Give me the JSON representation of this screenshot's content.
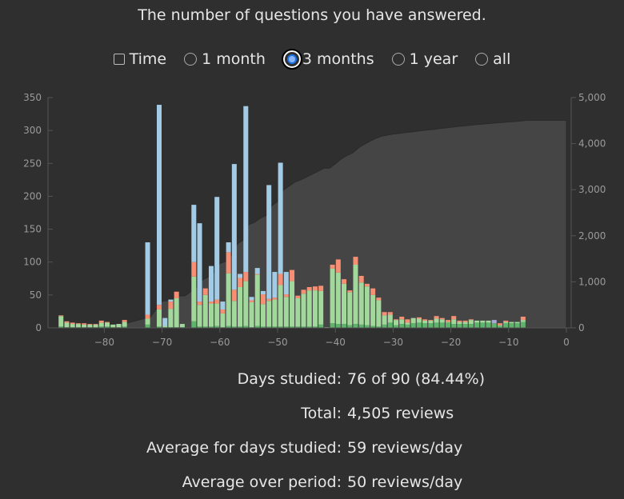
{
  "title": "The number of questions you have answered.",
  "controls": {
    "time_label": "Time",
    "time_checked": false,
    "ranges": [
      "1 month",
      "3 months",
      "1 year",
      "all"
    ],
    "selected_range": "3 months"
  },
  "stats": [
    {
      "label": "Days studied:",
      "value": "76 of 90 (84.44%)"
    },
    {
      "label": "Total:",
      "value": "4,505 reviews"
    },
    {
      "label": "Average for days studied:",
      "value": "59 reviews/day"
    },
    {
      "label": "Average over period:",
      "value": "50 reviews/day"
    }
  ],
  "colors": {
    "learn": "#a3cbe5",
    "relearn": "#f68f73",
    "young": "#a2d89c",
    "mature": "#5cb56a",
    "filtered": "#a9a9d6",
    "cumulative": "#454545",
    "background": "#2f2f2f"
  },
  "chart_data": {
    "type": "bar",
    "stacked": true,
    "xlim": [
      -88,
      0
    ],
    "ylim_left": [
      0,
      350
    ],
    "ylim_right": [
      0,
      5000
    ],
    "x_ticks": [
      -80,
      -70,
      -60,
      -50,
      -40,
      -30,
      -20,
      -10,
      0
    ],
    "x_tick_labels": [
      "−80",
      "−70",
      "−60",
      "−50",
      "−40",
      "−30",
      "−20",
      "−10",
      "0"
    ],
    "y_ticks_left": [
      "0",
      "50",
      "100",
      "150",
      "200",
      "250",
      "300",
      "350"
    ],
    "y_ticks_right": [
      "0",
      "1,000",
      "2,000",
      "3,000",
      "4,000",
      "5,000"
    ],
    "cumulative_area": true,
    "series_order": [
      "mature",
      "young",
      "relearn",
      "learn",
      "filtered"
    ],
    "days": [
      {
        "d": -88,
        "mature": 2,
        "young": 16,
        "relearn": 1,
        "learn": 0
      },
      {
        "d": -87,
        "mature": 1,
        "young": 7,
        "relearn": 2,
        "learn": 0
      },
      {
        "d": -86,
        "mature": 1,
        "young": 5,
        "relearn": 2,
        "learn": 0
      },
      {
        "d": -85,
        "mature": 1,
        "young": 5,
        "relearn": 1,
        "learn": 0
      },
      {
        "d": -84,
        "mature": 1,
        "young": 4,
        "relearn": 2,
        "learn": 0
      },
      {
        "d": -83,
        "mature": 1,
        "young": 4,
        "relearn": 1,
        "learn": 0
      },
      {
        "d": -82,
        "mature": 1,
        "young": 4,
        "relearn": 1,
        "learn": 0
      },
      {
        "d": -81,
        "mature": 2,
        "young": 6,
        "relearn": 3,
        "learn": 0
      },
      {
        "d": -80,
        "mature": 2,
        "young": 6,
        "relearn": 1,
        "learn": 0
      },
      {
        "d": -79,
        "mature": 1,
        "young": 4,
        "relearn": 0,
        "learn": 0
      },
      {
        "d": -78,
        "mature": 1,
        "young": 5,
        "relearn": 0,
        "learn": 0
      },
      {
        "d": -77,
        "mature": 2,
        "young": 7,
        "relearn": 3,
        "learn": 0
      },
      {
        "d": -73,
        "mature": 5,
        "young": 9,
        "relearn": 6,
        "learn": 110
      },
      {
        "d": -71,
        "mature": 2,
        "young": 26,
        "relearn": 7,
        "learn": 304
      },
      {
        "d": -70,
        "mature": 1,
        "young": 2,
        "relearn": 0,
        "learn": 12
      },
      {
        "d": -69,
        "mature": 1,
        "young": 28,
        "relearn": 11,
        "learn": 3
      },
      {
        "d": -68,
        "mature": 1,
        "young": 44,
        "relearn": 10,
        "learn": 0
      },
      {
        "d": -67,
        "mature": 1,
        "young": 5,
        "relearn": 0,
        "learn": 0
      },
      {
        "d": -65,
        "mature": 10,
        "young": 68,
        "relearn": 22,
        "learn": 87
      },
      {
        "d": -64,
        "mature": 2,
        "young": 33,
        "relearn": 5,
        "learn": 119
      },
      {
        "d": -63,
        "mature": 2,
        "young": 48,
        "relearn": 10,
        "learn": 0
      },
      {
        "d": -62,
        "mature": 2,
        "young": 35,
        "relearn": 3,
        "learn": 54
      },
      {
        "d": -61,
        "mature": 3,
        "young": 34,
        "relearn": 6,
        "learn": 156
      },
      {
        "d": -60,
        "mature": 1,
        "young": 21,
        "relearn": 6,
        "learn": 12
      },
      {
        "d": -59,
        "mature": 3,
        "young": 80,
        "relearn": 32,
        "learn": 15
      },
      {
        "d": -58,
        "mature": 2,
        "young": 39,
        "relearn": 17,
        "learn": 191
      },
      {
        "d": -57,
        "mature": 2,
        "young": 60,
        "relearn": 14,
        "learn": 6
      },
      {
        "d": -56,
        "mature": 3,
        "young": 68,
        "relearn": 14,
        "learn": 252
      },
      {
        "d": -55,
        "mature": 1,
        "young": 38,
        "relearn": 3,
        "learn": 5
      },
      {
        "d": -54,
        "mature": 3,
        "young": 78,
        "relearn": 1,
        "learn": 9
      },
      {
        "d": -53,
        "mature": 2,
        "young": 34,
        "relearn": 15,
        "learn": 5
      },
      {
        "d": -52,
        "mature": 2,
        "young": 39,
        "relearn": 3,
        "learn": 173
      },
      {
        "d": -51,
        "mature": 2,
        "young": 41,
        "relearn": 3,
        "learn": 39
      },
      {
        "d": -50,
        "mature": 2,
        "young": 63,
        "relearn": 17,
        "learn": 169
      },
      {
        "d": -49,
        "mature": 2,
        "young": 45,
        "relearn": 4,
        "learn": 34
      },
      {
        "d": -48,
        "mature": 2,
        "young": 69,
        "relearn": 17,
        "learn": 0
      },
      {
        "d": -47,
        "mature": 2,
        "young": 43,
        "relearn": 4,
        "learn": 0
      },
      {
        "d": -46,
        "mature": 2,
        "young": 50,
        "relearn": 6,
        "learn": 0
      },
      {
        "d": -45,
        "mature": 2,
        "young": 55,
        "relearn": 5,
        "learn": 0
      },
      {
        "d": -44,
        "mature": 2,
        "young": 55,
        "relearn": 6,
        "learn": 0
      },
      {
        "d": -43,
        "mature": 5,
        "young": 51,
        "relearn": 8,
        "learn": 0
      },
      {
        "d": -42,
        "mature": 0,
        "young": 1,
        "relearn": 0,
        "learn": 0
      },
      {
        "d": -41,
        "mature": 7,
        "young": 83,
        "relearn": 6,
        "learn": 0
      },
      {
        "d": -40,
        "mature": 6,
        "young": 78,
        "relearn": 20,
        "learn": 0
      },
      {
        "d": -39,
        "mature": 6,
        "young": 61,
        "relearn": 7,
        "learn": 0
      },
      {
        "d": -38,
        "mature": 4,
        "young": 50,
        "relearn": 3,
        "learn": 0
      },
      {
        "d": -37,
        "mature": 6,
        "young": 90,
        "relearn": 12,
        "learn": 0
      },
      {
        "d": -36,
        "mature": 5,
        "young": 64,
        "relearn": 10,
        "learn": 0
      },
      {
        "d": -35,
        "mature": 4,
        "young": 59,
        "relearn": 4,
        "learn": 0
      },
      {
        "d": -34,
        "mature": 3,
        "young": 47,
        "relearn": 10,
        "learn": 0
      },
      {
        "d": -33,
        "mature": 2,
        "young": 40,
        "relearn": 4,
        "learn": 0
      },
      {
        "d": -32,
        "mature": 5,
        "young": 14,
        "relearn": 5,
        "learn": 0
      },
      {
        "d": -31,
        "mature": 8,
        "young": 12,
        "relearn": 4,
        "learn": 0
      },
      {
        "d": -30,
        "mature": 4,
        "young": 8,
        "relearn": 1,
        "learn": 0
      },
      {
        "d": -29,
        "mature": 6,
        "young": 7,
        "relearn": 4,
        "learn": 0
      },
      {
        "d": -28,
        "mature": 5,
        "young": 3,
        "relearn": 5,
        "learn": 0
      },
      {
        "d": -27,
        "mature": 7,
        "young": 8,
        "relearn": 0,
        "learn": 0
      },
      {
        "d": -26,
        "mature": 8,
        "young": 6,
        "relearn": 2,
        "learn": 0
      },
      {
        "d": -25,
        "mature": 7,
        "young": 4,
        "relearn": 2,
        "learn": 0
      },
      {
        "d": -24,
        "mature": 7,
        "young": 4,
        "relearn": 1,
        "learn": 0
      },
      {
        "d": -23,
        "mature": 8,
        "young": 6,
        "relearn": 4,
        "learn": 0
      },
      {
        "d": -22,
        "mature": 8,
        "young": 5,
        "relearn": 2,
        "learn": 0
      },
      {
        "d": -21,
        "mature": 8,
        "young": 1,
        "relearn": 3,
        "learn": 0
      },
      {
        "d": -20,
        "mature": 6,
        "young": 7,
        "relearn": 5,
        "learn": 0
      },
      {
        "d": -19,
        "mature": 6,
        "young": 3,
        "relearn": 2,
        "learn": 0
      },
      {
        "d": -18,
        "mature": 6,
        "young": 3,
        "relearn": 2,
        "learn": 0
      },
      {
        "d": -17,
        "mature": 6,
        "young": 6,
        "relearn": 1,
        "learn": 0
      },
      {
        "d": -16,
        "mature": 8,
        "young": 3,
        "relearn": 0,
        "learn": 0
      },
      {
        "d": -15,
        "mature": 8,
        "young": 3,
        "relearn": 0,
        "learn": 0
      },
      {
        "d": -14,
        "mature": 8,
        "young": 3,
        "relearn": 0,
        "learn": 0
      },
      {
        "d": -13,
        "mature": 7,
        "young": 0,
        "relearn": 0,
        "learn": 0,
        "filtered": 5
      },
      {
        "d": -12,
        "mature": 3,
        "young": 1,
        "relearn": 3,
        "learn": 0
      },
      {
        "d": -11,
        "mature": 7,
        "young": 2,
        "relearn": 2,
        "learn": 0
      },
      {
        "d": -10,
        "mature": 7,
        "young": 2,
        "relearn": 0,
        "learn": 0
      },
      {
        "d": -9,
        "mature": 7,
        "young": 2,
        "relearn": 0,
        "learn": 0
      },
      {
        "d": -8,
        "mature": 9,
        "young": 3,
        "relearn": 5,
        "learn": 0
      }
    ],
    "cumulative_total": 4505
  }
}
